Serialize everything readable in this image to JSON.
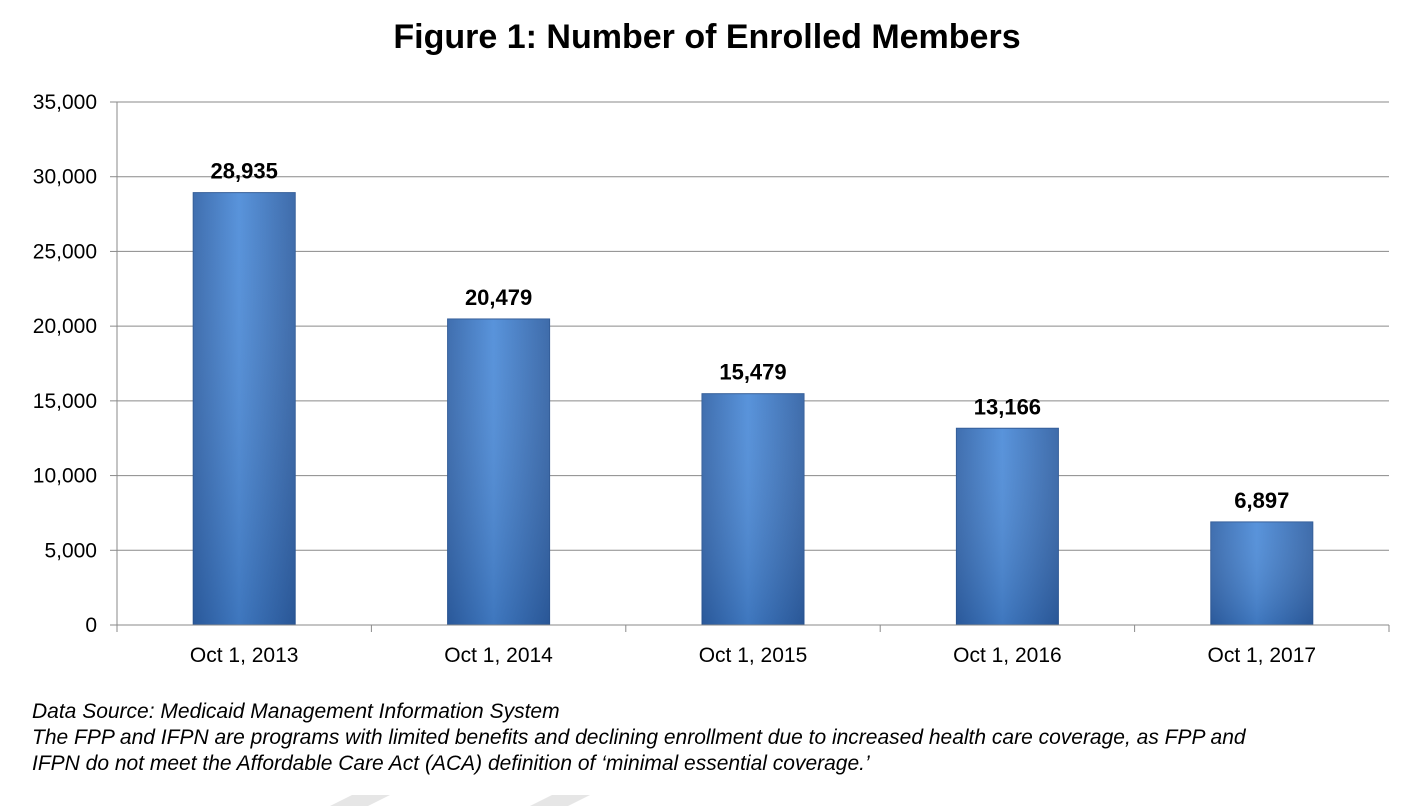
{
  "chart_data": {
    "type": "bar",
    "title": "Figure 1: Number of Enrolled Members",
    "categories": [
      "Oct 1, 2013",
      "Oct 1, 2014",
      "Oct 1, 2015",
      "Oct 1, 2016",
      "Oct 1, 2017"
    ],
    "values": [
      28935,
      20479,
      15479,
      13166,
      6897
    ],
    "data_labels": [
      "28,935",
      "20,479",
      "15,479",
      "13,166",
      "6,897"
    ],
    "ylim": [
      0,
      35000
    ],
    "yticks": [
      0,
      5000,
      10000,
      15000,
      20000,
      25000,
      30000,
      35000
    ],
    "ytick_labels": [
      "0",
      "5,000",
      "10,000",
      "15,000",
      "20,000",
      "25,000",
      "30,000",
      "35,000"
    ],
    "xlabel": "",
    "ylabel": "",
    "grid": true,
    "bar_color": "#3f7fd0"
  },
  "notes": {
    "source": "Data Source: Medicaid Management Information System",
    "line1": "The FPP and IFPN are programs with limited benefits and declining enrollment due to increased health care coverage, as FPP and",
    "line2": "IFPN do not meet the Affordable Care Act (ACA) definition of ‘minimal essential coverage.’"
  }
}
